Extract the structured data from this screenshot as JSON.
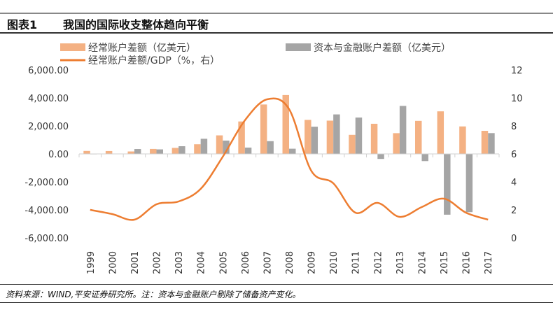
{
  "header": {
    "figure_no": "图表1",
    "title": "我国的国际收支整体趋向平衡"
  },
  "footer": {
    "source": "资料来源：WIND,平安证券研究所。注：资本与金融账户剔除了储备资产变化。"
  },
  "colors": {
    "ca": "#F4B183",
    "ka": "#A5A5A5",
    "line": "#ED7D31"
  },
  "chart_data": {
    "type": "bar",
    "categories": [
      "1999",
      "2000",
      "2001",
      "2002",
      "2003",
      "2004",
      "2005",
      "2006",
      "2007",
      "2008",
      "2009",
      "2010",
      "2011",
      "2012",
      "2013",
      "2014",
      "2015",
      "2016",
      "2017"
    ],
    "series": [
      {
        "name": "经常账户差额（亿美元）",
        "type": "bar",
        "axis": "left",
        "values": [
          211,
          204,
          174,
          354,
          431,
          689,
          1324,
          2318,
          3532,
          4206,
          2433,
          2378,
          1361,
          2154,
          1482,
          2360,
          3042,
          1964,
          1649
        ]
      },
      {
        "name": "资本与金融账户差额（亿美元）",
        "type": "bar",
        "axis": "left",
        "values": [
          -30,
          20,
          348,
          323,
          549,
          1082,
          953,
          453,
          911,
          371,
          1945,
          2822,
          2600,
          -360,
          3430,
          -514,
          -4345,
          -4161,
          1486
        ]
      },
      {
        "name": "经常账户差额/GDP（%，右）",
        "type": "line",
        "axis": "right",
        "values": [
          2.0,
          1.7,
          1.3,
          2.4,
          2.6,
          3.5,
          5.8,
          8.4,
          9.9,
          9.2,
          4.8,
          3.9,
          1.8,
          2.5,
          1.5,
          2.2,
          2.8,
          1.8,
          1.3
        ]
      }
    ],
    "ylim": [
      -6000,
      6000
    ],
    "y2lim": [
      0,
      12
    ],
    "yticks": [
      "6,000.00",
      "4,000.00",
      "2,000.00",
      "0.00",
      "-2,000.00",
      "-4,000.00",
      "-6,000.00"
    ],
    "y2ticks": [
      "12",
      "10",
      "8",
      "6",
      "4",
      "2",
      "0"
    ],
    "legend": "top",
    "grid": false
  }
}
